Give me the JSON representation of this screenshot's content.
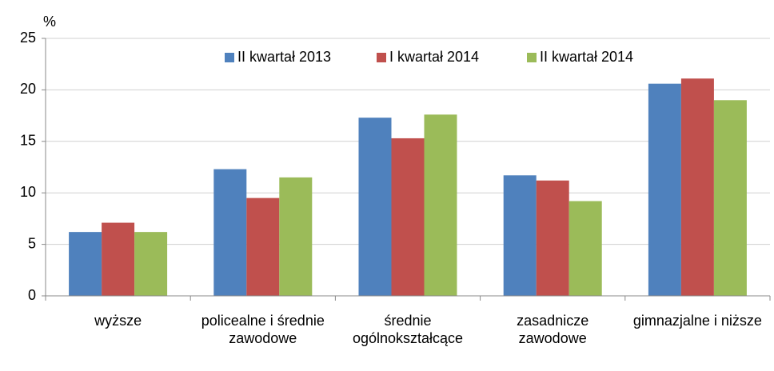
{
  "chart_data": {
    "type": "bar",
    "y_label": "%",
    "categories": [
      "wyższe",
      "policealne i średnie zawodowe",
      "średnie ogólnokształcące",
      "zasadnicze zawodowe",
      "gimnazjalne i niższe"
    ],
    "series": [
      {
        "name": "II kwartał 2013",
        "color": "#4f81bd",
        "values": [
          6.2,
          12.3,
          17.3,
          11.7,
          20.6
        ]
      },
      {
        "name": "I kwartał 2014",
        "color": "#c0504d",
        "values": [
          7.1,
          9.5,
          15.3,
          11.2,
          21.1
        ]
      },
      {
        "name": "II kwartał 2014",
        "color": "#9bbb59",
        "values": [
          6.2,
          11.5,
          17.6,
          9.2,
          19.0
        ]
      }
    ],
    "ylim": [
      0,
      25
    ],
    "yticks": [
      0,
      5,
      10,
      15,
      20,
      25
    ],
    "grid": true,
    "legend": "top"
  }
}
